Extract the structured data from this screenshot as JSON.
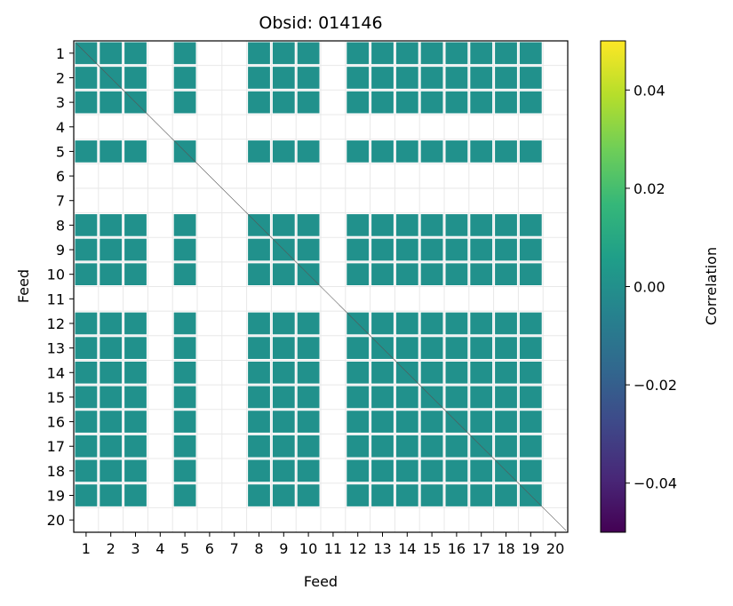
{
  "chart_data": {
    "type": "heatmap",
    "title": "Obsid: 014146",
    "xlabel": "Feed",
    "ylabel": "Feed",
    "x_ticks": [
      "1",
      "2",
      "3",
      "4",
      "5",
      "6",
      "7",
      "8",
      "9",
      "10",
      "11",
      "12",
      "13",
      "14",
      "15",
      "16",
      "17",
      "18",
      "19",
      "20"
    ],
    "y_ticks": [
      "1",
      "2",
      "3",
      "4",
      "5",
      "6",
      "7",
      "8",
      "9",
      "10",
      "11",
      "12",
      "13",
      "14",
      "15",
      "16",
      "17",
      "18",
      "19",
      "20"
    ],
    "feeds": [
      1,
      2,
      3,
      4,
      5,
      6,
      7,
      8,
      9,
      10,
      11,
      12,
      13,
      14,
      15,
      16,
      17,
      18,
      19,
      20
    ],
    "active_feeds": [
      1,
      2,
      3,
      5,
      8,
      9,
      10,
      12,
      13,
      14,
      15,
      16,
      17,
      18,
      19
    ],
    "inactive_feeds": [
      4,
      6,
      7,
      11,
      20
    ],
    "cell_value": 0.0,
    "cell_color": "#21918c",
    "grid": true,
    "colorbar": {
      "label": "Correlation",
      "vmin": -0.05,
      "vmax": 0.05,
      "ticks": [
        -0.04,
        -0.02,
        0.0,
        0.02,
        0.04
      ],
      "tick_labels": [
        "−0.04",
        "−0.02",
        "0.00",
        "0.02",
        "0.04"
      ],
      "colormap": "viridis",
      "stops": [
        "#440154",
        "#482878",
        "#3e4989",
        "#31688e",
        "#26828e",
        "#1f9e89",
        "#35b779",
        "#6ece58",
        "#b5de2b",
        "#fde725"
      ]
    }
  }
}
